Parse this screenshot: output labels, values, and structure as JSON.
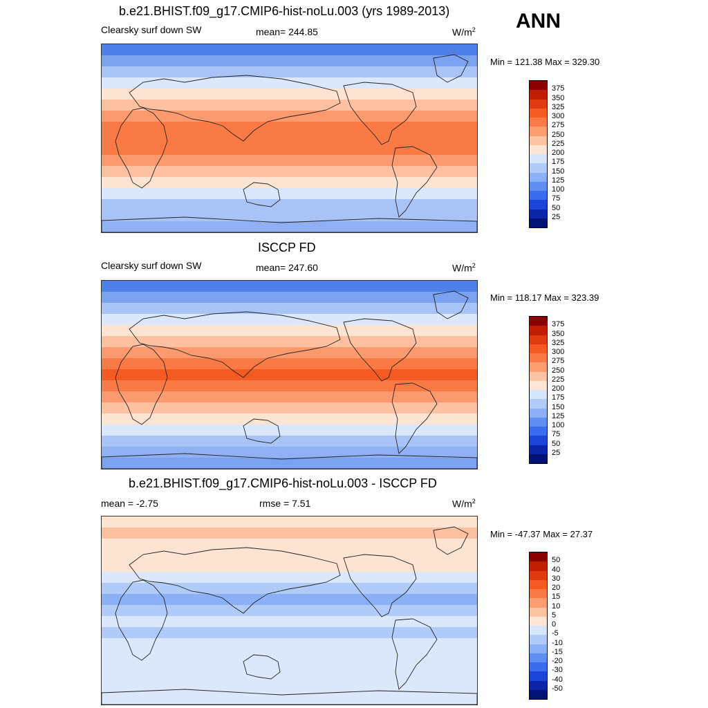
{
  "ann": "ANN",
  "panels": [
    {
      "title": "b.e21.BHIST.f09_g17.CMIP6-hist-noLu.003 (yrs 1989-2013)",
      "left_label": "Clearsky surf down SW",
      "mid_label": "mean= 244.85",
      "units": "W/m",
      "units_sup": "2",
      "minmax": "Min = 121.38 Max = 329.30",
      "colorbar_labels": [
        "375",
        "350",
        "325",
        "300",
        "275",
        "250",
        "225",
        "200",
        "175",
        "150",
        "125",
        "100",
        "75",
        "50",
        "25"
      ],
      "colorbar_colors": [
        "#8b0000",
        "#bf1e00",
        "#e03a10",
        "#f45a22",
        "#fa7a45",
        "#fc9d70",
        "#fdc3a3",
        "#fde5d5",
        "#d7e6fb",
        "#b0cbf7",
        "#8bb0f5",
        "#5f8ef2",
        "#3a6cf0",
        "#1b45d8",
        "#0c25a8",
        "#001276"
      ],
      "band_colors": [
        "#4f7fe8",
        "#7ba2f1",
        "#a8c3f6",
        "#dbe7fb",
        "#fde3d2",
        "#fdc1a1",
        "#fb9a6e",
        "#f97a44",
        "#f97a44",
        "#f97a44",
        "#fb9a6e",
        "#fdc1a1",
        "#fde3d2",
        "#dbe7fb",
        "#a8c3f6",
        "#a8c3f6",
        "#8fb0f3"
      ]
    },
    {
      "title": "ISCCP FD",
      "left_label": "Clearsky surf down SW",
      "mid_label": "mean= 247.60",
      "units": "W/m",
      "units_sup": "2",
      "minmax": "Min = 118.17 Max = 323.39",
      "colorbar_labels": [
        "375",
        "350",
        "325",
        "300",
        "275",
        "250",
        "225",
        "200",
        "175",
        "150",
        "125",
        "100",
        "75",
        "50",
        "25"
      ],
      "colorbar_colors": [
        "#8b0000",
        "#bf1e00",
        "#e03a10",
        "#f45a22",
        "#fa7a45",
        "#fc9d70",
        "#fdc3a3",
        "#fde5d5",
        "#d7e6fb",
        "#b0cbf7",
        "#8bb0f5",
        "#5f8ef2",
        "#3a6cf0",
        "#1b45d8",
        "#0c25a8",
        "#001276"
      ],
      "band_colors": [
        "#4f7fe8",
        "#7ba2f1",
        "#a8c3f6",
        "#dbe7fb",
        "#fde3d2",
        "#fdc1a1",
        "#fb9a6e",
        "#f97a44",
        "#f45a22",
        "#f97a44",
        "#fb9a6e",
        "#fdc1a1",
        "#fde3d2",
        "#dbe7fb",
        "#a8c3f6",
        "#8fb0f3",
        "#7ba2f1"
      ]
    },
    {
      "title": "b.e21.BHIST.f09_g17.CMIP6-hist-noLu.003 - ISCCP FD",
      "left_label": "mean =  -2.75",
      "mid_label": "rmse =   7.51",
      "units": "W/m",
      "units_sup": "2",
      "minmax": "Min = -47.37 Max =  27.37",
      "colorbar_labels": [
        "50",
        "40",
        "30",
        "20",
        "15",
        "10",
        "5",
        "0",
        "-5",
        "-10",
        "-15",
        "-20",
        "-30",
        "-40",
        "-50"
      ],
      "colorbar_colors": [
        "#8b0000",
        "#bf1e00",
        "#e03a10",
        "#f45a22",
        "#fa7a45",
        "#fc9d70",
        "#fdc3a3",
        "#fde5d5",
        "#d7e6fb",
        "#b0cbf7",
        "#8bb0f5",
        "#5f8ef2",
        "#3a6cf0",
        "#1b45d8",
        "#0c25a8",
        "#001276"
      ],
      "band_colors": [
        "#fde3d2",
        "#fdc1a1",
        "#fde3d2",
        "#fde3d2",
        "#fde3d2",
        "#dbe7fb",
        "#b0cbf7",
        "#8bb0f5",
        "#b0cbf7",
        "#dbe7fb",
        "#b0cbf7",
        "#dbe7fb",
        "#dbe7fb",
        "#dbe7fb",
        "#dbe7fb",
        "#dbe7fb",
        "#dbe7fb"
      ]
    }
  ]
}
